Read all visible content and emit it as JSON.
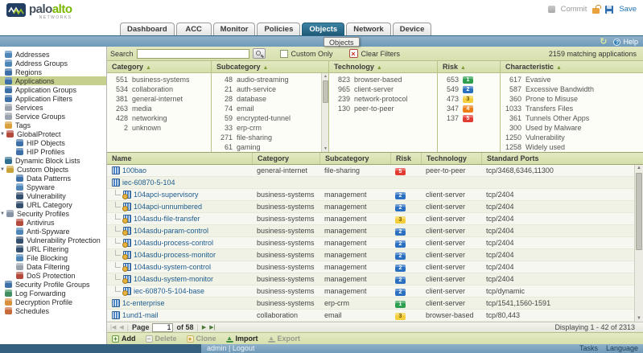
{
  "header": {
    "brand_palo": "palo",
    "brand_alto": "alto",
    "brand_networks": "NETWORKS",
    "tabs": [
      {
        "label": "Dashboard"
      },
      {
        "label": "ACC"
      },
      {
        "label": "Monitor"
      },
      {
        "label": "Policies"
      },
      {
        "label": "Objects",
        "active": true
      },
      {
        "label": "Network"
      },
      {
        "label": "Device"
      }
    ],
    "commit_label": "Commit",
    "save_label": "Save"
  },
  "subheader": {
    "breadcrumb_tooltip": "Objects",
    "help_label": "Help",
    "refresh_glyph": "↻"
  },
  "sidebar": {
    "items": [
      {
        "label": "Addresses",
        "icon": "addresses-icon",
        "color": "#4e86b8"
      },
      {
        "label": "Address Groups",
        "icon": "address-groups-icon",
        "color": "#4e86b8"
      },
      {
        "label": "Regions",
        "icon": "regions-icon",
        "color": "#3d6fa8"
      },
      {
        "label": "Applications",
        "icon": "applications-icon",
        "color": "#3d6fa8",
        "selected": true
      },
      {
        "label": "Application Groups",
        "icon": "application-groups-icon",
        "color": "#3d6fa8"
      },
      {
        "label": "Application Filters",
        "icon": "application-filters-icon",
        "color": "#3d6fa8"
      },
      {
        "label": "Services",
        "icon": "services-icon",
        "color": "#9aa3ad"
      },
      {
        "label": "Service Groups",
        "icon": "service-groups-icon",
        "color": "#9aa3ad"
      },
      {
        "label": "Tags",
        "icon": "tags-icon",
        "color": "#d9a13c"
      },
      {
        "label": "GlobalProtect",
        "icon": "globalprotect-icon",
        "color": "#b34a3c",
        "expander": true
      },
      {
        "label": "HIP Objects",
        "icon": "hip-objects-icon",
        "color": "#3d6fa8",
        "level": 1
      },
      {
        "label": "HIP Profiles",
        "icon": "hip-profiles-icon",
        "color": "#3d6fa8",
        "level": 1
      },
      {
        "label": "Dynamic Block Lists",
        "icon": "dynamic-block-lists-icon",
        "color": "#2f6f8f"
      },
      {
        "label": "Custom Objects",
        "icon": "custom-objects-icon",
        "color": "#c9a23a",
        "expander": true
      },
      {
        "label": "Data Patterns",
        "icon": "data-patterns-icon",
        "color": "#3d6fa8",
        "level": 1
      },
      {
        "label": "Spyware",
        "icon": "spyware-icon",
        "color": "#4e86b8",
        "level": 1
      },
      {
        "label": "Vulnerability",
        "icon": "vulnerability-icon",
        "color": "#35506e",
        "level": 1
      },
      {
        "label": "URL Category",
        "icon": "url-category-icon",
        "color": "#35506e",
        "level": 1
      },
      {
        "label": "Security Profiles",
        "icon": "security-profiles-icon",
        "color": "#8593a5",
        "expander": true
      },
      {
        "label": "Antivirus",
        "icon": "antivirus-icon",
        "color": "#b34a3c",
        "level": 1
      },
      {
        "label": "Anti-Spyware",
        "icon": "anti-spyware-icon",
        "color": "#4e86b8",
        "level": 1
      },
      {
        "label": "Vulnerability Protection",
        "icon": "vulnerability-protection-icon",
        "color": "#35506e",
        "level": 1
      },
      {
        "label": "URL Filtering",
        "icon": "url-filtering-icon",
        "color": "#35506e",
        "level": 1
      },
      {
        "label": "File Blocking",
        "icon": "file-blocking-icon",
        "color": "#4e86b8",
        "level": 1
      },
      {
        "label": "Data Filtering",
        "icon": "data-filtering-icon",
        "color": "#9aa3ad",
        "level": 1
      },
      {
        "label": "DoS Protection",
        "icon": "dos-protection-icon",
        "color": "#b34a3c",
        "level": 1
      },
      {
        "label": "Security Profile Groups",
        "icon": "security-profile-groups-icon",
        "color": "#3d6fa8"
      },
      {
        "label": "Log Forwarding",
        "icon": "log-forwarding-icon",
        "color": "#3f8f5f"
      },
      {
        "label": "Decryption Profile",
        "icon": "decryption-profile-icon",
        "color": "#d98f3c"
      },
      {
        "label": "Schedules",
        "icon": "schedules-icon",
        "color": "#c96a3c"
      }
    ]
  },
  "filters": {
    "search_label": "Search",
    "search_value": "",
    "custom_only_label": "Custom Only",
    "clear_filters_label": "Clear Filters",
    "matching_text": "2159 matching applications",
    "columns": [
      {
        "header": "Category",
        "items": [
          {
            "count": "551",
            "label": "business-systems"
          },
          {
            "count": "534",
            "label": "collaboration"
          },
          {
            "count": "381",
            "label": "general-internet"
          },
          {
            "count": "263",
            "label": "media"
          },
          {
            "count": "428",
            "label": "networking"
          },
          {
            "count": "2",
            "label": "unknown"
          }
        ]
      },
      {
        "header": "Subcategory",
        "scrollbar": true,
        "items": [
          {
            "count": "48",
            "label": "audio-streaming"
          },
          {
            "count": "21",
            "label": "auth-service"
          },
          {
            "count": "28",
            "label": "database"
          },
          {
            "count": "74",
            "label": "email"
          },
          {
            "count": "59",
            "label": "encrypted-tunnel"
          },
          {
            "count": "33",
            "label": "erp-crm"
          },
          {
            "count": "271",
            "label": "file-sharing"
          },
          {
            "count": "61",
            "label": "gaming"
          }
        ]
      },
      {
        "header": "Technology",
        "items": [
          {
            "count": "823",
            "label": "browser-based"
          },
          {
            "count": "965",
            "label": "client-server"
          },
          {
            "count": "239",
            "label": "network-protocol"
          },
          {
            "count": "130",
            "label": "peer-to-peer"
          }
        ]
      },
      {
        "header": "Risk",
        "items": [
          {
            "count": "653",
            "risk": "1"
          },
          {
            "count": "549",
            "risk": "2"
          },
          {
            "count": "473",
            "risk": "3"
          },
          {
            "count": "347",
            "risk": "4"
          },
          {
            "count": "137",
            "risk": "5"
          }
        ]
      },
      {
        "header": "Characteristic",
        "items": [
          {
            "count": "617",
            "label": "Evasive"
          },
          {
            "count": "587",
            "label": "Excessive Bandwidth"
          },
          {
            "count": "360",
            "label": "Prone to Misuse"
          },
          {
            "count": "1033",
            "label": "Transfers Files"
          },
          {
            "count": "361",
            "label": "Tunnels Other Apps"
          },
          {
            "count": "300",
            "label": "Used by Malware"
          },
          {
            "count": "1250",
            "label": "Vulnerability"
          },
          {
            "count": "1258",
            "label": "Widely used"
          }
        ]
      }
    ]
  },
  "risk_colors": {
    "1": "#2e9e4f",
    "2": "#2a6fc0",
    "3": "#f5cf3a",
    "4": "#ef7d17",
    "5": "#e23b31"
  },
  "table": {
    "headers": [
      "Name",
      "Category",
      "Subcategory",
      "Risk",
      "Technology",
      "Standard Ports"
    ],
    "rows": [
      {
        "name": "100bao",
        "child": false,
        "icon": "application-icon",
        "category": "general-internet",
        "subcategory": "file-sharing",
        "risk": "5",
        "technology": "peer-to-peer",
        "ports": "tcp/3468,6346,11300"
      },
      {
        "name": "iec-60870-5-104",
        "child": false,
        "icon": "application-container-icon",
        "category": "",
        "subcategory": "",
        "risk": "",
        "technology": "",
        "ports": ""
      },
      {
        "name": "104apci-supervisory",
        "child": true,
        "icon": "application-function-icon",
        "category": "business-systems",
        "subcategory": "management",
        "risk": "2",
        "technology": "client-server",
        "ports": "tcp/2404"
      },
      {
        "name": "104apci-unnumbered",
        "child": true,
        "icon": "application-function-icon",
        "category": "business-systems",
        "subcategory": "management",
        "risk": "2",
        "technology": "client-server",
        "ports": "tcp/2404"
      },
      {
        "name": "104asdu-file-transfer",
        "child": true,
        "icon": "application-function-icon",
        "category": "business-systems",
        "subcategory": "management",
        "risk": "3",
        "technology": "client-server",
        "ports": "tcp/2404"
      },
      {
        "name": "104asdu-param-control",
        "child": true,
        "icon": "application-function-icon",
        "category": "business-systems",
        "subcategory": "management",
        "risk": "2",
        "technology": "client-server",
        "ports": "tcp/2404"
      },
      {
        "name": "104asdu-process-control",
        "child": true,
        "icon": "application-function-icon",
        "category": "business-systems",
        "subcategory": "management",
        "risk": "2",
        "technology": "client-server",
        "ports": "tcp/2404"
      },
      {
        "name": "104asdu-process-monitor",
        "child": true,
        "icon": "application-function-icon",
        "category": "business-systems",
        "subcategory": "management",
        "risk": "2",
        "technology": "client-server",
        "ports": "tcp/2404"
      },
      {
        "name": "104asdu-system-control",
        "child": true,
        "icon": "application-function-icon",
        "category": "business-systems",
        "subcategory": "management",
        "risk": "2",
        "technology": "client-server",
        "ports": "tcp/2404"
      },
      {
        "name": "104asdu-system-monitor",
        "child": true,
        "icon": "application-function-icon",
        "category": "business-systems",
        "subcategory": "management",
        "risk": "2",
        "technology": "client-server",
        "ports": "tcp/2404"
      },
      {
        "name": "iec-60870-5-104-base",
        "child": true,
        "icon": "application-function-icon",
        "category": "business-systems",
        "subcategory": "management",
        "risk": "2",
        "technology": "client-server",
        "ports": "tcp/dynamic"
      },
      {
        "name": "1c-enterprise",
        "child": false,
        "icon": "application-icon",
        "category": "business-systems",
        "subcategory": "erp-crm",
        "risk": "1",
        "technology": "client-server",
        "ports": "tcp/1541,1560-1591"
      },
      {
        "name": "1und1-mail",
        "child": false,
        "icon": "application-icon",
        "category": "collaboration",
        "subcategory": "email",
        "risk": "3",
        "technology": "browser-based",
        "ports": "tcp/80,443"
      }
    ]
  },
  "pagination": {
    "page_label": "Page",
    "page_value": "1",
    "of_label": "of 58",
    "displaying": "Displaying 1 - 42 of 2313"
  },
  "toolbar": {
    "add": "Add",
    "delete": "Delete",
    "clone": "Clone",
    "import": "Import",
    "export": "Export"
  },
  "footer": {
    "user_links": "admin | Logout",
    "tasks": "Tasks",
    "language": "Language"
  }
}
